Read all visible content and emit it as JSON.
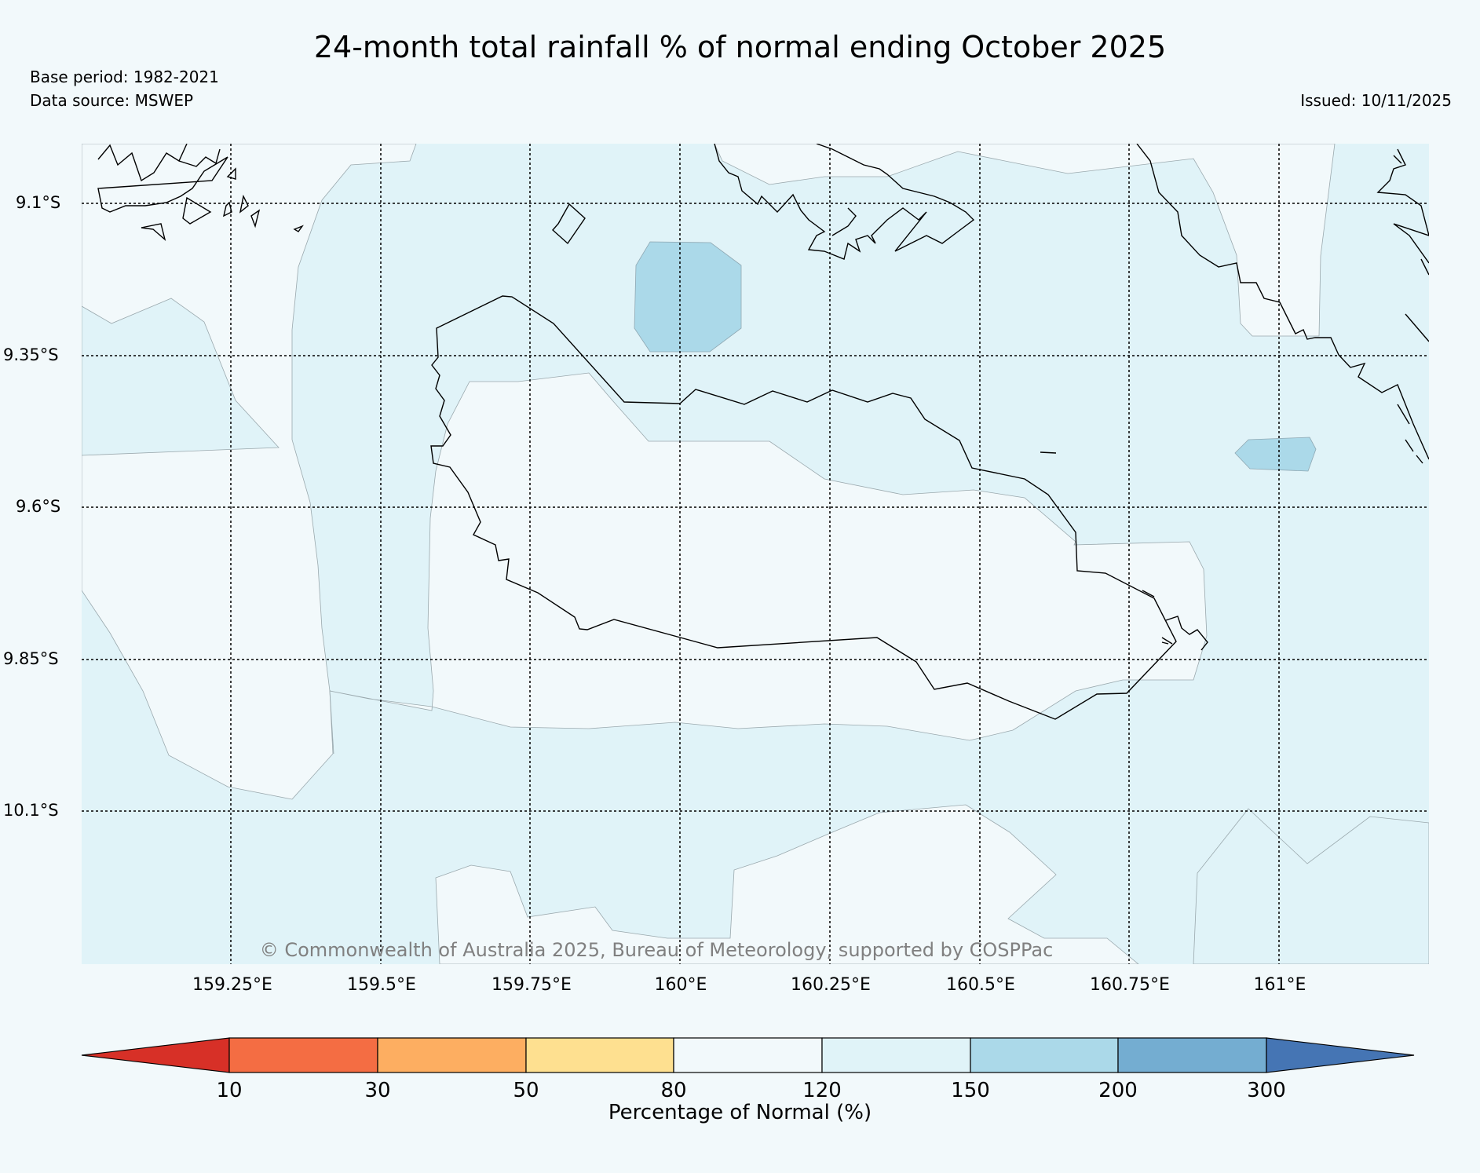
{
  "header": {
    "title": "24-month total rainfall % of normal ending October 2025",
    "base_period": "Base period: 1982-2021",
    "data_source": "Data source: MSWEP",
    "issued": "Issued: 10/11/2025"
  },
  "map": {
    "lat_labels": [
      "9.1°S",
      "9.35°S",
      "9.6°S",
      "9.85°S",
      "10.1°S"
    ],
    "lon_labels": [
      "159.25°E",
      "159.5°E",
      "159.75°E",
      "160°E",
      "160.25°E",
      "160.5°E",
      "160.75°E",
      "161°E"
    ],
    "copyright": "© Commonwealth of Australia 2025, Bureau of Meteorology, supported by COSPPac"
  },
  "legend": {
    "title": "Percentage of Normal (%)",
    "ticks": [
      "10",
      "30",
      "50",
      "80",
      "120",
      "150",
      "200",
      "300"
    ],
    "colors": {
      "below_10": "#d73027",
      "10_30": "#f46d43",
      "30_50": "#fdae61",
      "50_80": "#fee090",
      "80_120": "#f2f9fb",
      "120_150": "#e0f3f8",
      "150_200": "#abd9e9",
      "200_300": "#74add1",
      "above_300": "#4575b4"
    }
  }
}
